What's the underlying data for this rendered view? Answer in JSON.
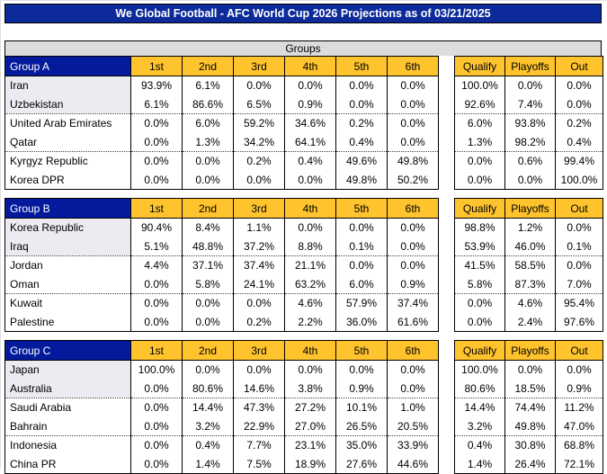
{
  "title": "We Global Football - AFC World Cup 2026 Projections as of 03/21/2025",
  "section_header": "Groups",
  "position_columns": [
    "1st",
    "2nd",
    "3rd",
    "4th",
    "5th",
    "6th"
  ],
  "outcome_columns": [
    "Qualify",
    "Playoffs",
    "Out"
  ],
  "colors": {
    "title_bar_bg": "#0C2A9A",
    "group_header_bg": "#041A9C",
    "column_header_bg": "#FFC42D",
    "section_band_bg": "#DCDCDC",
    "shaded_name_cell_bg": "#EBEBF1",
    "border": "#000000"
  },
  "groups": [
    {
      "name": "Group A",
      "teams": [
        {
          "name": "Iran",
          "positions": [
            "93.9%",
            "6.1%",
            "0.0%",
            "0.0%",
            "0.0%",
            "0.0%"
          ],
          "outcomes": [
            "100.0%",
            "0.0%",
            "0.0%"
          ]
        },
        {
          "name": "Uzbekistan",
          "positions": [
            "6.1%",
            "86.6%",
            "6.5%",
            "0.9%",
            "0.0%",
            "0.0%"
          ],
          "outcomes": [
            "92.6%",
            "7.4%",
            "0.0%"
          ]
        },
        {
          "name": "United Arab Emirates",
          "positions": [
            "0.0%",
            "6.0%",
            "59.2%",
            "34.6%",
            "0.2%",
            "0.0%"
          ],
          "outcomes": [
            "6.0%",
            "93.8%",
            "0.2%"
          ]
        },
        {
          "name": "Qatar",
          "positions": [
            "0.0%",
            "1.3%",
            "34.2%",
            "64.1%",
            "0.4%",
            "0.0%"
          ],
          "outcomes": [
            "1.3%",
            "98.2%",
            "0.4%"
          ]
        },
        {
          "name": "Kyrgyz Republic",
          "positions": [
            "0.0%",
            "0.0%",
            "0.2%",
            "0.4%",
            "49.6%",
            "49.8%"
          ],
          "outcomes": [
            "0.0%",
            "0.6%",
            "99.4%"
          ]
        },
        {
          "name": "Korea DPR",
          "positions": [
            "0.0%",
            "0.0%",
            "0.0%",
            "0.0%",
            "49.8%",
            "50.2%"
          ],
          "outcomes": [
            "0.0%",
            "0.0%",
            "100.0%"
          ]
        }
      ]
    },
    {
      "name": "Group B",
      "teams": [
        {
          "name": "Korea Republic",
          "positions": [
            "90.4%",
            "8.4%",
            "1.1%",
            "0.0%",
            "0.0%",
            "0.0%"
          ],
          "outcomes": [
            "98.8%",
            "1.2%",
            "0.0%"
          ]
        },
        {
          "name": "Iraq",
          "positions": [
            "5.1%",
            "48.8%",
            "37.2%",
            "8.8%",
            "0.1%",
            "0.0%"
          ],
          "outcomes": [
            "53.9%",
            "46.0%",
            "0.1%"
          ]
        },
        {
          "name": "Jordan",
          "positions": [
            "4.4%",
            "37.1%",
            "37.4%",
            "21.1%",
            "0.0%",
            "0.0%"
          ],
          "outcomes": [
            "41.5%",
            "58.5%",
            "0.0%"
          ]
        },
        {
          "name": "Oman",
          "positions": [
            "0.0%",
            "5.8%",
            "24.1%",
            "63.2%",
            "6.0%",
            "0.9%"
          ],
          "outcomes": [
            "5.8%",
            "87.3%",
            "7.0%"
          ]
        },
        {
          "name": "Kuwait",
          "positions": [
            "0.0%",
            "0.0%",
            "0.0%",
            "4.6%",
            "57.9%",
            "37.4%"
          ],
          "outcomes": [
            "0.0%",
            "4.6%",
            "95.4%"
          ]
        },
        {
          "name": "Palestine",
          "positions": [
            "0.0%",
            "0.0%",
            "0.2%",
            "2.2%",
            "36.0%",
            "61.6%"
          ],
          "outcomes": [
            "0.0%",
            "2.4%",
            "97.6%"
          ]
        }
      ]
    },
    {
      "name": "Group C",
      "teams": [
        {
          "name": "Japan",
          "positions": [
            "100.0%",
            "0.0%",
            "0.0%",
            "0.0%",
            "0.0%",
            "0.0%"
          ],
          "outcomes": [
            "100.0%",
            "0.0%",
            "0.0%"
          ]
        },
        {
          "name": "Australia",
          "positions": [
            "0.0%",
            "80.6%",
            "14.6%",
            "3.8%",
            "0.9%",
            "0.0%"
          ],
          "outcomes": [
            "80.6%",
            "18.5%",
            "0.9%"
          ]
        },
        {
          "name": "Saudi Arabia",
          "positions": [
            "0.0%",
            "14.4%",
            "47.3%",
            "27.2%",
            "10.1%",
            "1.0%"
          ],
          "outcomes": [
            "14.4%",
            "74.4%",
            "11.2%"
          ]
        },
        {
          "name": "Bahrain",
          "positions": [
            "0.0%",
            "3.2%",
            "22.9%",
            "27.0%",
            "26.5%",
            "20.5%"
          ],
          "outcomes": [
            "3.2%",
            "49.8%",
            "47.0%"
          ]
        },
        {
          "name": "Indonesia",
          "positions": [
            "0.0%",
            "0.4%",
            "7.7%",
            "23.1%",
            "35.0%",
            "33.9%"
          ],
          "outcomes": [
            "0.4%",
            "30.8%",
            "68.8%"
          ]
        },
        {
          "name": "China PR",
          "positions": [
            "0.0%",
            "1.4%",
            "7.5%",
            "18.9%",
            "27.6%",
            "44.6%"
          ],
          "outcomes": [
            "1.4%",
            "26.4%",
            "72.1%"
          ]
        }
      ]
    }
  ]
}
